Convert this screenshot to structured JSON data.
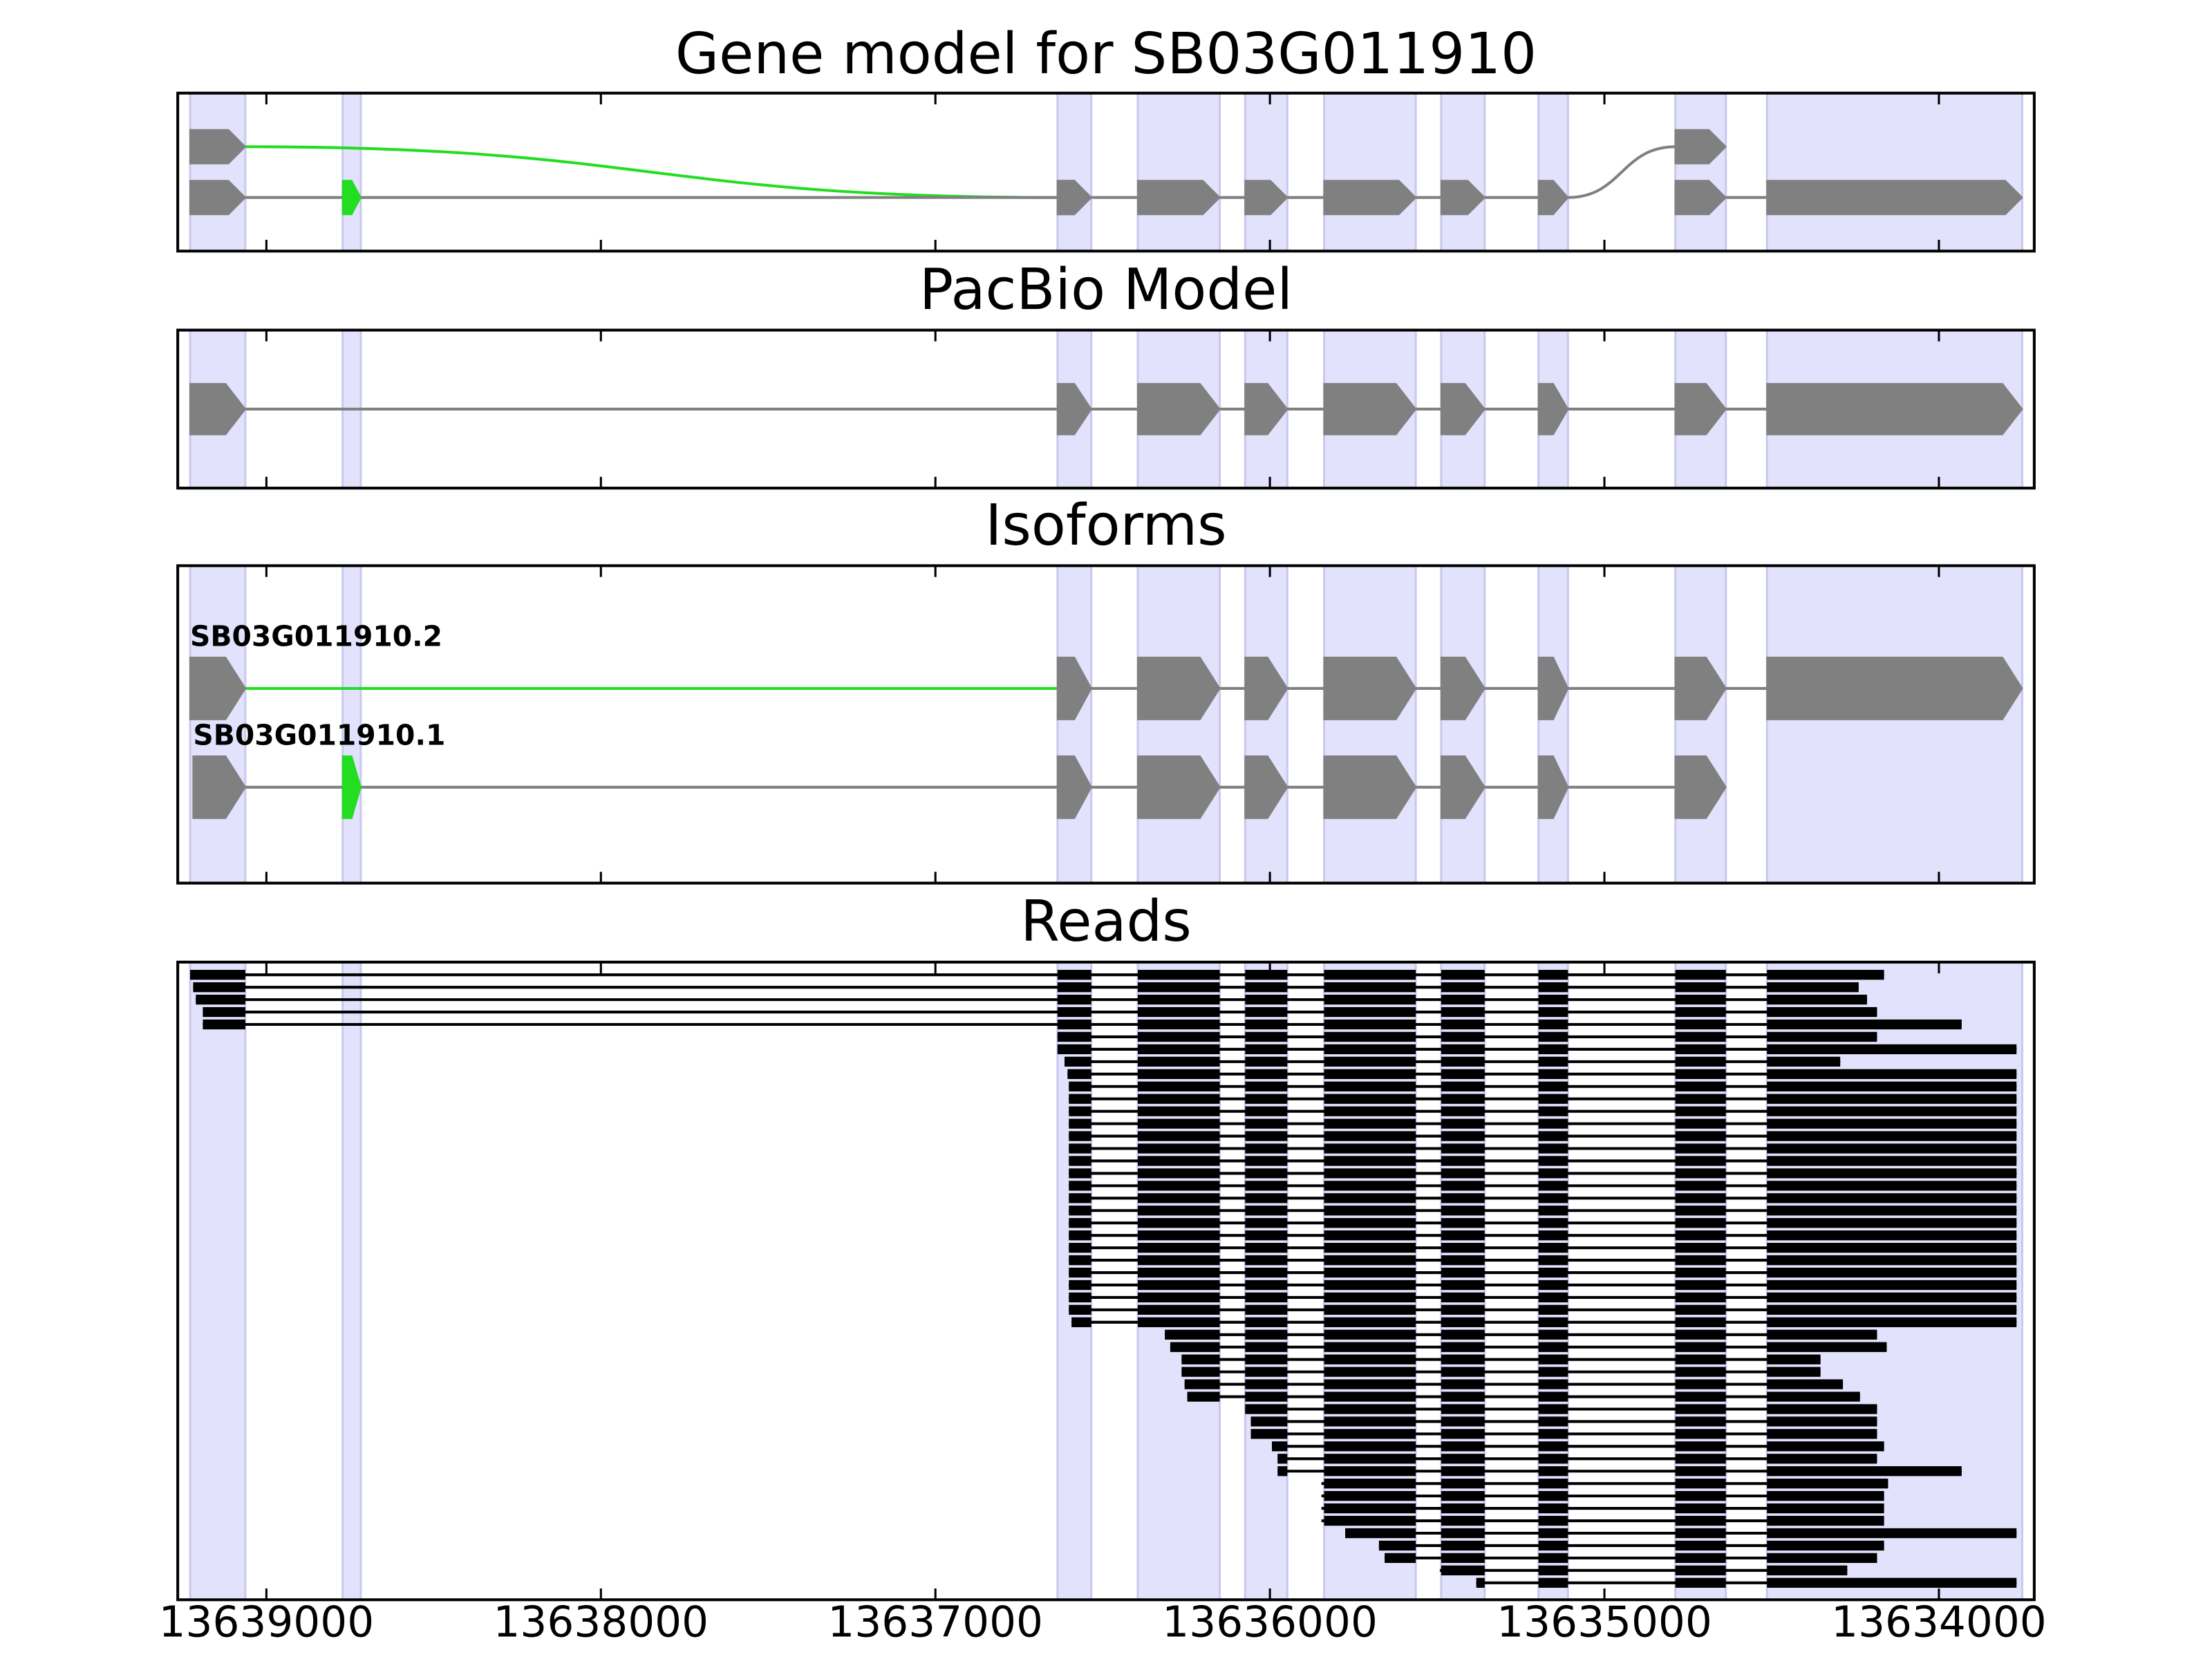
{
  "chart_data": [
    {
      "type": "gene-track",
      "title": "Gene model for SB03G011910",
      "xlim": [
        13639265,
        13633715
      ],
      "xticks": [
        13639000,
        13638000,
        13637000,
        13636000,
        13635000,
        13634000
      ],
      "region_color": "#e2e2fc",
      "exon_color": "#808080",
      "intron_color": "#808080",
      "regions": [
        [
          13639228,
          13639063
        ],
        [
          13638772,
          13638718
        ],
        [
          13636635,
          13636534
        ],
        [
          13636395,
          13636150
        ],
        [
          13636074,
          13635948
        ],
        [
          13635838,
          13635564
        ],
        [
          13635488,
          13635358
        ],
        [
          13635197,
          13635109
        ],
        [
          13634788,
          13634637
        ],
        [
          13634514,
          13633751
        ]
      ],
      "transcripts": [
        {
          "exons": [
            {
              "start": 13639228,
              "end": 13639063,
              "row": 0
            },
            {
              "start": 13636635,
              "end": 13636534,
              "row": 1,
              "link_color": "#22dd22"
            }
          ]
        },
        {
          "exons": [
            {
              "start": 13639228,
              "end": 13639063,
              "row": 1
            },
            {
              "start": 13638772,
              "end": 13638718,
              "row": 1,
              "color": "#22dd22"
            },
            {
              "start": 13636635,
              "end": 13636534,
              "row": 1
            },
            {
              "start": 13636395,
              "end": 13636150,
              "row": 1
            },
            {
              "start": 13636074,
              "end": 13635948,
              "row": 1
            },
            {
              "start": 13635838,
              "end": 13635564,
              "row": 1
            },
            {
              "start": 13635488,
              "end": 13635358,
              "row": 1
            },
            {
              "start": 13635197,
              "end": 13635109,
              "row": 1
            },
            {
              "start": 13634788,
              "end": 13634637,
              "row": 0
            }
          ]
        },
        {
          "exons": [
            {
              "start": 13634788,
              "end": 13634637,
              "row": 1
            },
            {
              "start": 13634514,
              "end": 13633751,
              "row": 1
            }
          ]
        }
      ]
    },
    {
      "type": "gene-track",
      "title": "PacBio Model",
      "xlim": [
        13639265,
        13633715
      ],
      "xticks": [
        13639000,
        13638000,
        13637000,
        13636000,
        13635000,
        13634000
      ],
      "region_color": "#e2e2fc",
      "exon_color": "#808080",
      "intron_color": "#808080",
      "regions": [
        [
          13639228,
          13639063
        ],
        [
          13638772,
          13638718
        ],
        [
          13636635,
          13636534
        ],
        [
          13636395,
          13636150
        ],
        [
          13636074,
          13635948
        ],
        [
          13635838,
          13635564
        ],
        [
          13635488,
          13635358
        ],
        [
          13635197,
          13635109
        ],
        [
          13634788,
          13634637
        ],
        [
          13634514,
          13633751
        ]
      ],
      "transcripts": [
        {
          "exons": [
            {
              "start": 13639228,
              "end": 13639063,
              "row": 0
            },
            {
              "start": 13636635,
              "end": 13636534,
              "row": 0
            },
            {
              "start": 13636395,
              "end": 13636150,
              "row": 0
            },
            {
              "start": 13636074,
              "end": 13635948,
              "row": 0
            },
            {
              "start": 13635838,
              "end": 13635564,
              "row": 0
            },
            {
              "start": 13635488,
              "end": 13635358,
              "row": 0
            },
            {
              "start": 13635197,
              "end": 13635109,
              "row": 0
            },
            {
              "start": 13634788,
              "end": 13634637,
              "row": 0
            },
            {
              "start": 13634514,
              "end": 13633751,
              "row": 0
            }
          ]
        }
      ]
    },
    {
      "type": "gene-track",
      "title": "Isoforms",
      "xlim": [
        13639265,
        13633715
      ],
      "xticks": [
        13639000,
        13638000,
        13637000,
        13636000,
        13635000,
        13634000
      ],
      "region_color": "#e2e2fc",
      "exon_color": "#808080",
      "intron_color": "#808080",
      "regions": [
        [
          13639228,
          13639063
        ],
        [
          13638772,
          13638718
        ],
        [
          13636635,
          13636534
        ],
        [
          13636395,
          13636150
        ],
        [
          13636074,
          13635948
        ],
        [
          13635838,
          13635564
        ],
        [
          13635488,
          13635358
        ],
        [
          13635197,
          13635109
        ],
        [
          13634788,
          13634637
        ],
        [
          13634514,
          13633751
        ]
      ],
      "transcripts": [
        {
          "name": "SB03G011910.2",
          "exons": [
            {
              "start": 13639228,
              "end": 13639063,
              "row": 0
            },
            {
              "start": 13636635,
              "end": 13636534,
              "row": 0,
              "link_color": "#22dd22"
            },
            {
              "start": 13636395,
              "end": 13636150,
              "row": 0
            },
            {
              "start": 13636074,
              "end": 13635948,
              "row": 0
            },
            {
              "start": 13635838,
              "end": 13635564,
              "row": 0
            },
            {
              "start": 13635488,
              "end": 13635358,
              "row": 0
            },
            {
              "start": 13635197,
              "end": 13635109,
              "row": 0
            },
            {
              "start": 13634788,
              "end": 13634637,
              "row": 0
            },
            {
              "start": 13634514,
              "end": 13633751,
              "row": 0
            }
          ]
        },
        {
          "name": "SB03G011910.1",
          "exons": [
            {
              "start": 13639219,
              "end": 13639063,
              "row": 1
            },
            {
              "start": 13638772,
              "end": 13638718,
              "row": 1,
              "color": "#22dd22"
            },
            {
              "start": 13636635,
              "end": 13636534,
              "row": 1
            },
            {
              "start": 13636395,
              "end": 13636150,
              "row": 1
            },
            {
              "start": 13636074,
              "end": 13635948,
              "row": 1
            },
            {
              "start": 13635838,
              "end": 13635564,
              "row": 1
            },
            {
              "start": 13635488,
              "end": 13635358,
              "row": 1
            },
            {
              "start": 13635197,
              "end": 13635109,
              "row": 1
            },
            {
              "start": 13634788,
              "end": 13634637,
              "row": 1
            }
          ]
        }
      ]
    },
    {
      "type": "reads",
      "title": "Reads",
      "xlim": [
        13639265,
        13633715
      ],
      "xticks": [
        13639000,
        13638000,
        13637000,
        13636000,
        13635000,
        13634000
      ],
      "region_color": "#e2e2fc",
      "read_color": "#000000",
      "regions": [
        [
          13639228,
          13639063
        ],
        [
          13638772,
          13638718
        ],
        [
          13636635,
          13636534
        ],
        [
          13636395,
          13636150
        ],
        [
          13636074,
          13635948
        ],
        [
          13635838,
          13635564
        ],
        [
          13635488,
          13635358
        ],
        [
          13635197,
          13635109
        ],
        [
          13634788,
          13634637
        ],
        [
          13634514,
          13633751
        ]
      ],
      "blocks": [
        [
          13639228,
          13639063
        ],
        [
          13636635,
          13636534
        ],
        [
          13636395,
          13636150
        ],
        [
          13636074,
          13635948
        ],
        [
          13635838,
          13635564
        ],
        [
          13635488,
          13635358
        ],
        [
          13635197,
          13635109
        ],
        [
          13634788,
          13634637
        ],
        [
          13634514,
          13633751
        ]
      ],
      "reads": [
        [
          13639228,
          13634164
        ],
        [
          13639219,
          13634240
        ],
        [
          13639211,
          13634215
        ],
        [
          13639190,
          13634185
        ],
        [
          13639190,
          13633932
        ],
        [
          13636635,
          13634185
        ],
        [
          13636635,
          13633768
        ],
        [
          13636614,
          13634295
        ],
        [
          13636605,
          13633768
        ],
        [
          13636601,
          13633768
        ],
        [
          13636601,
          13633768
        ],
        [
          13636601,
          13633768
        ],
        [
          13636601,
          13633768
        ],
        [
          13636601,
          13633768
        ],
        [
          13636601,
          13633768
        ],
        [
          13636601,
          13633768
        ],
        [
          13636601,
          13633768
        ],
        [
          13636601,
          13633768
        ],
        [
          13636601,
          13633768
        ],
        [
          13636601,
          13633768
        ],
        [
          13636601,
          13633768
        ],
        [
          13636601,
          13633768
        ],
        [
          13636601,
          13633768
        ],
        [
          13636601,
          13633768
        ],
        [
          13636601,
          13633768
        ],
        [
          13636601,
          13633768
        ],
        [
          13636601,
          13633768
        ],
        [
          13636601,
          13633768
        ],
        [
          13636593,
          13633768
        ],
        [
          13636314,
          13634185
        ],
        [
          13636298,
          13634156
        ],
        [
          13636264,
          13634354
        ],
        [
          13636264,
          13634354
        ],
        [
          13636255,
          13634287
        ],
        [
          13636247,
          13634236
        ],
        [
          13636074,
          13634185
        ],
        [
          13636057,
          13634185
        ],
        [
          13636057,
          13634185
        ],
        [
          13635994,
          13634164
        ],
        [
          13635977,
          13634185
        ],
        [
          13635977,
          13633932
        ],
        [
          13635846,
          13634152
        ],
        [
          13635846,
          13634164
        ],
        [
          13635846,
          13634164
        ],
        [
          13635846,
          13634164
        ],
        [
          13635775,
          13633768
        ],
        [
          13635674,
          13634164
        ],
        [
          13635657,
          13634185
        ],
        [
          13635492,
          13634274
        ],
        [
          13635383,
          13633768
        ]
      ]
    }
  ]
}
